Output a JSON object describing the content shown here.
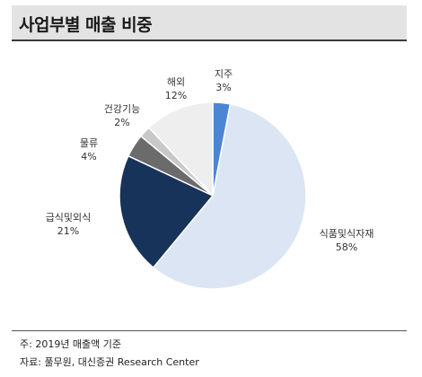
{
  "header": {
    "title": "사업부별 매출 비중"
  },
  "chart_data": {
    "type": "pie",
    "title": "사업부별 매출 비중",
    "slices": [
      {
        "label": "지주",
        "value": 3,
        "display": "3%",
        "color": "#4a86d4"
      },
      {
        "label": "식품및식자재",
        "value": 58,
        "display": "58%",
        "color": "#dbe5f3"
      },
      {
        "label": "급식및외식",
        "value": 21,
        "display": "21%",
        "color": "#18335a"
      },
      {
        "label": "물류",
        "value": 4,
        "display": "4%",
        "color": "#6b6b6b"
      },
      {
        "label": "건강기능",
        "value": 2,
        "display": "2%",
        "color": "#c8c8c8"
      },
      {
        "label": "해외",
        "value": 12,
        "display": "12%",
        "color": "#eeeeee"
      }
    ]
  },
  "footer": {
    "note": "주: 2019년 매출액 기준",
    "source": "자료: 풀무원, 대신증권 Research Center"
  }
}
